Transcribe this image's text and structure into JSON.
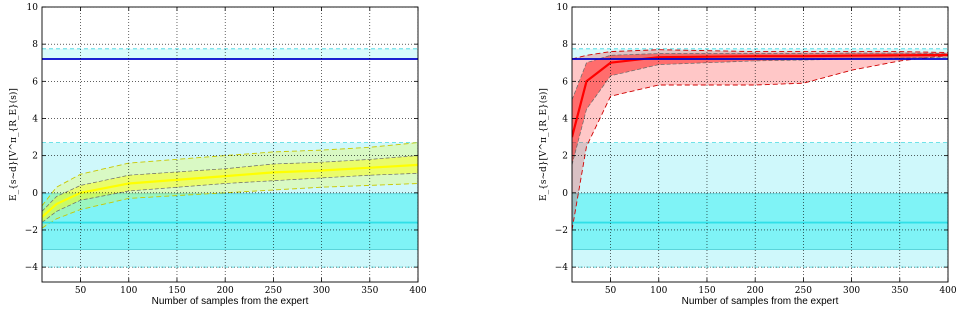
{
  "chart_data": [
    {
      "type": "line",
      "title": "",
      "xlabel": "Number of samples from the expert",
      "ylabel": "E_{s~d}[V^π_{R_E}(s)]",
      "xlim": [
        10,
        400
      ],
      "ylim": [
        -4.8,
        10
      ],
      "xticks": [
        50,
        100,
        150,
        200,
        250,
        300,
        350,
        400
      ],
      "yticks": [
        -4,
        -2,
        0,
        2,
        4,
        6,
        8,
        10
      ],
      "tick_labels_x": [
        "50",
        "100",
        "150",
        "200",
        "250",
        "300",
        "350",
        "400"
      ],
      "tick_labels_y": [
        "−4",
        "−2",
        "0",
        "2",
        "4",
        "6",
        "8",
        "10"
      ],
      "grid": true,
      "bands": [
        {
          "low": -4.0,
          "high": 2.7,
          "color": "#cff8fb",
          "edge": "#40d8e0",
          "style": "dashed"
        },
        {
          "low": -3.05,
          "high": -0.05,
          "color": "#7ff3f6",
          "edge": "#40c8d0",
          "style": "solid"
        },
        {
          "low": 7.2,
          "high": 7.75,
          "color": "#d8fafc",
          "edge": "#40d8e0",
          "style": "dashed"
        }
      ],
      "hlines": [
        {
          "y": 7.2,
          "color": "#0000cc"
        },
        {
          "y": -1.6,
          "color": "#30e0e8"
        }
      ],
      "series": [
        {
          "color": "#ffff00",
          "edge": "#c8c800",
          "x": [
            10,
            25,
            50,
            100,
            200,
            250,
            300,
            350,
            400
          ],
          "mean": [
            -1.3,
            -0.6,
            0.0,
            0.5,
            0.9,
            1.1,
            1.2,
            1.35,
            1.5
          ],
          "std_low": [
            -1.6,
            -1.0,
            -0.4,
            0.1,
            0.5,
            0.65,
            0.8,
            0.95,
            1.05
          ],
          "std_high": [
            -1.0,
            -0.2,
            0.4,
            0.95,
            1.3,
            1.55,
            1.65,
            1.8,
            2.0
          ],
          "min": [
            -1.9,
            -1.4,
            -0.9,
            -0.3,
            0.0,
            0.15,
            0.3,
            0.4,
            0.5
          ],
          "max": [
            -0.7,
            0.3,
            1.0,
            1.6,
            2.0,
            2.2,
            2.3,
            2.45,
            2.7
          ]
        }
      ]
    },
    {
      "type": "line",
      "title": "",
      "xlabel": "Number of samples from the expert",
      "ylabel": "E_{s~d}[V^π_{R_E}(s)]",
      "xlim": [
        10,
        400
      ],
      "ylim": [
        -4.8,
        10
      ],
      "xticks": [
        50,
        100,
        150,
        200,
        250,
        300,
        350,
        400
      ],
      "yticks": [
        -4,
        -2,
        0,
        2,
        4,
        6,
        8,
        10
      ],
      "tick_labels_x": [
        "50",
        "100",
        "150",
        "200",
        "250",
        "300",
        "350",
        "400"
      ],
      "tick_labels_y": [
        "−4",
        "−2",
        "0",
        "2",
        "4",
        "6",
        "8",
        "10"
      ],
      "grid": true,
      "bands": [
        {
          "low": -4.0,
          "high": 2.7,
          "color": "#cff8fb",
          "edge": "#40d8e0",
          "style": "dashed"
        },
        {
          "low": -3.05,
          "high": -0.05,
          "color": "#7ff3f6",
          "edge": "#40c8d0",
          "style": "solid"
        },
        {
          "low": 7.2,
          "high": 7.75,
          "color": "#d8fafc",
          "edge": "#40d8e0",
          "style": "dashed"
        }
      ],
      "hlines": [
        {
          "y": 7.2,
          "color": "#0000cc"
        },
        {
          "y": -1.6,
          "color": "#30e0e8"
        }
      ],
      "series": [
        {
          "color": "#ff0000",
          "edge": "#d00000",
          "x": [
            10,
            25,
            50,
            100,
            200,
            250,
            300,
            350,
            400
          ],
          "mean": [
            3.0,
            6.0,
            7.0,
            7.3,
            7.35,
            7.35,
            7.38,
            7.4,
            7.42
          ],
          "std_low": [
            1.5,
            4.5,
            6.3,
            6.9,
            7.1,
            7.15,
            7.2,
            7.25,
            7.3
          ],
          "std_high": [
            5.0,
            7.0,
            7.4,
            7.5,
            7.5,
            7.5,
            7.52,
            7.52,
            7.5
          ],
          "min": [
            -2.0,
            2.5,
            5.2,
            5.8,
            5.8,
            5.9,
            6.6,
            7.1,
            7.4
          ],
          "max": [
            7.2,
            7.4,
            7.6,
            7.7,
            7.6,
            7.6,
            7.6,
            7.6,
            7.55
          ]
        }
      ]
    }
  ]
}
